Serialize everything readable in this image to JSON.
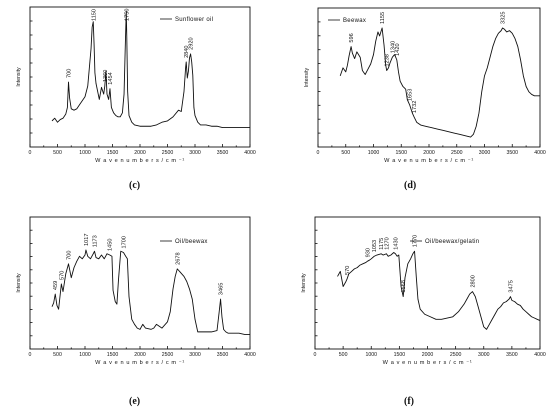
{
  "captions": [
    "(c)",
    "(d)",
    "(e)",
    "(f)"
  ],
  "chart_data": [
    {
      "type": "line",
      "legend": "Sunflower oil",
      "xlabel": "W a v e n u m b e r s / c m ⁻¹",
      "ylabel": "Intensity",
      "xlim": [
        0,
        4000
      ],
      "xticks": [
        0,
        500,
        1000,
        1500,
        2000,
        2500,
        3000,
        3500,
        4000
      ],
      "ylim": [
        0,
        100
      ],
      "x": [
        400,
        450,
        500,
        550,
        600,
        650,
        680,
        700,
        720,
        750,
        800,
        850,
        900,
        950,
        1000,
        1050,
        1080,
        1110,
        1130,
        1150,
        1165,
        1180,
        1200,
        1230,
        1260,
        1300,
        1340,
        1360,
        1380,
        1400,
        1430,
        1454,
        1480,
        1520,
        1560,
        1600,
        1640,
        1680,
        1710,
        1730,
        1750,
        1760,
        1775,
        1800,
        1850,
        1900,
        2000,
        2100,
        2200,
        2300,
        2400,
        2500,
        2600,
        2700,
        2750,
        2800,
        2830,
        2840,
        2860,
        2880,
        2900,
        2920,
        2940,
        2960,
        2980,
        3000,
        3050,
        3100,
        3200,
        3300,
        3400,
        3500,
        3600,
        3700,
        3800,
        3900,
        4000
      ],
      "y": [
        18,
        20,
        17,
        19,
        20,
        23,
        28,
        47,
        35,
        27,
        26,
        27,
        30,
        33,
        36,
        44,
        58,
        72,
        88,
        92,
        75,
        54,
        46,
        40,
        34,
        43,
        38,
        44,
        55,
        38,
        34,
        42,
        28,
        24,
        22,
        21,
        21,
        24,
        38,
        70,
        100,
        80,
        40,
        22,
        17,
        15,
        14,
        14,
        14,
        15,
        17,
        18,
        21,
        26,
        25,
        40,
        58,
        62,
        50,
        55,
        65,
        68,
        62,
        52,
        28,
        22,
        17,
        15,
        15,
        14,
        14,
        13,
        13,
        13,
        13,
        13,
        13
      ],
      "annotations": [
        {
          "x": 700,
          "label": "700"
        },
        {
          "x": 1150,
          "label": "1150"
        },
        {
          "x": 1360,
          "label": "1360"
        },
        {
          "x": 1454,
          "label": "1454"
        },
        {
          "x": 1750,
          "label": "1750"
        },
        {
          "x": 2840,
          "label": "2840"
        },
        {
          "x": 2920,
          "label": "2920"
        }
      ]
    },
    {
      "type": "line",
      "legend": "Beewax",
      "xlabel": "W a v e n u m b e r s / c m ⁻¹",
      "ylabel": "Intensity",
      "xlim": [
        0,
        4000
      ],
      "xticks": [
        0,
        500,
        1000,
        1500,
        2000,
        2500,
        3000,
        3500,
        4000
      ],
      "ylim": [
        0,
        100
      ],
      "x": [
        400,
        450,
        500,
        530,
        560,
        596,
        620,
        660,
        700,
        760,
        800,
        850,
        900,
        950,
        1000,
        1040,
        1080,
        1110,
        1155,
        1190,
        1220,
        1238,
        1270,
        1300,
        1340,
        1380,
        1420,
        1450,
        1480,
        1530,
        1580,
        1610,
        1653,
        1700,
        1732,
        1780,
        1850,
        1950,
        2050,
        2150,
        2250,
        2350,
        2450,
        2550,
        2650,
        2750,
        2800,
        2850,
        2900,
        2950,
        3000,
        3050,
        3100,
        3150,
        3200,
        3250,
        3300,
        3325,
        3360,
        3400,
        3450,
        3500,
        3550,
        3600,
        3650,
        3700,
        3750,
        3800,
        3850,
        3900,
        3950,
        4000
      ],
      "y": [
        52,
        58,
        55,
        60,
        67,
        74,
        69,
        65,
        70,
        66,
        56,
        53,
        57,
        61,
        68,
        78,
        85,
        82,
        88,
        75,
        60,
        56,
        58,
        62,
        66,
        68,
        64,
        55,
        48,
        44,
        42,
        34,
        30,
        24,
        21,
        17,
        15,
        14,
        13,
        12,
        11,
        10,
        9,
        8,
        7,
        6,
        8,
        14,
        24,
        40,
        52,
        58,
        66,
        74,
        80,
        84,
        86,
        88,
        87,
        85,
        86,
        84,
        80,
        74,
        64,
        52,
        44,
        40,
        38,
        37,
        37,
        37
      ],
      "annotations": [
        {
          "x": 596,
          "label": "596"
        },
        {
          "x": 1155,
          "label": "1155"
        },
        {
          "x": 1238,
          "label": "1238"
        },
        {
          "x": 1340,
          "label": "1340"
        },
        {
          "x": 1420,
          "label": "1420"
        },
        {
          "x": 1653,
          "label": "1653"
        },
        {
          "x": 1732,
          "label": "1732"
        },
        {
          "x": 3325,
          "label": "3325"
        }
      ]
    },
    {
      "type": "line",
      "legend": "Oil/beewax",
      "xlabel": "W a v e n u m b e r s / c m ⁻¹",
      "ylabel": "Intensity",
      "xlim": [
        0,
        4000
      ],
      "xticks": [
        0,
        500,
        1000,
        1500,
        2000,
        2500,
        3000,
        3500,
        4000
      ],
      "ylim": [
        0,
        100
      ],
      "x": [
        400,
        430,
        459,
        490,
        520,
        570,
        600,
        650,
        700,
        750,
        800,
        850,
        900,
        950,
        1000,
        1017,
        1050,
        1100,
        1150,
        1173,
        1200,
        1250,
        1300,
        1350,
        1400,
        1450,
        1490,
        1510,
        1550,
        1580,
        1610,
        1650,
        1700,
        1740,
        1770,
        1800,
        1850,
        1900,
        1950,
        2000,
        2050,
        2100,
        2200,
        2250,
        2300,
        2400,
        2500,
        2550,
        2600,
        2640,
        2678,
        2720,
        2760,
        2800,
        2850,
        2900,
        2950,
        3000,
        3050,
        3100,
        3200,
        3300,
        3400,
        3440,
        3465,
        3490,
        3520,
        3560,
        3600,
        3700,
        3800,
        3900,
        4000
      ],
      "y": [
        32,
        35,
        42,
        33,
        30,
        50,
        44,
        58,
        66,
        55,
        63,
        68,
        72,
        70,
        73,
        77,
        72,
        70,
        74,
        76,
        71,
        70,
        73,
        70,
        74,
        73,
        72,
        45,
        36,
        34,
        54,
        76,
        75,
        72,
        70,
        40,
        22,
        18,
        15,
        14,
        18,
        15,
        14,
        15,
        18,
        15,
        20,
        28,
        46,
        56,
        62,
        60,
        58,
        56,
        52,
        46,
        38,
        22,
        12,
        12,
        12,
        12,
        13,
        28,
        38,
        24,
        14,
        12,
        11,
        11,
        11,
        10,
        10
      ],
      "annotations": [
        {
          "x": 459,
          "label": "459"
        },
        {
          "x": 570,
          "label": "570"
        },
        {
          "x": 700,
          "label": "700"
        },
        {
          "x": 1017,
          "label": "1017"
        },
        {
          "x": 1173,
          "label": "1173"
        },
        {
          "x": 1450,
          "label": "1450"
        },
        {
          "x": 1700,
          "label": "1700"
        },
        {
          "x": 2678,
          "label": "2678"
        },
        {
          "x": 3465,
          "label": "3465"
        }
      ]
    },
    {
      "type": "line",
      "legend": "Oil/beewax/gelatin",
      "xlabel": "W a v e n u m b e r s / c m ⁻¹",
      "ylabel": "Intensity",
      "xlim": [
        0,
        4000
      ],
      "xticks": [
        0,
        500,
        1000,
        1500,
        2000,
        2500,
        3000,
        3500,
        4000
      ],
      "ylim": [
        0,
        100
      ],
      "x": [
        400,
        450,
        500,
        550,
        570,
        600,
        650,
        700,
        750,
        800,
        850,
        900,
        930,
        970,
        1000,
        1053,
        1100,
        1175,
        1210,
        1270,
        1300,
        1350,
        1400,
        1430,
        1460,
        1490,
        1530,
        1568,
        1600,
        1650,
        1700,
        1740,
        1770,
        1800,
        1830,
        1870,
        1950,
        2050,
        2150,
        2250,
        2350,
        2450,
        2550,
        2650,
        2700,
        2750,
        2800,
        2850,
        2900,
        2950,
        3000,
        3050,
        3100,
        3150,
        3200,
        3250,
        3300,
        3350,
        3400,
        3450,
        3475,
        3500,
        3550,
        3600,
        3650,
        3700,
        3750,
        3800,
        3850,
        3900,
        3950,
        4000
      ],
      "y": [
        56,
        60,
        48,
        52,
        54,
        58,
        60,
        62,
        63,
        65,
        66,
        67,
        68,
        69,
        70,
        72,
        73,
        74,
        73,
        74,
        72,
        73,
        75,
        74,
        72,
        73,
        48,
        40,
        55,
        66,
        70,
        74,
        76,
        56,
        38,
        30,
        26,
        24,
        22,
        22,
        23,
        24,
        28,
        34,
        38,
        42,
        44,
        40,
        32,
        24,
        16,
        14,
        18,
        22,
        26,
        30,
        32,
        35,
        36,
        38,
        40,
        37,
        36,
        34,
        33,
        30,
        28,
        26,
        24,
        23,
        22,
        21
      ],
      "annotations": [
        {
          "x": 570,
          "label": "570"
        },
        {
          "x": 930,
          "label": "930"
        },
        {
          "x": 1053,
          "label": "1053"
        },
        {
          "x": 1175,
          "label": "1175"
        },
        {
          "x": 1270,
          "label": "1270"
        },
        {
          "x": 1430,
          "label": "1430"
        },
        {
          "x": 1568,
          "label": "1568"
        },
        {
          "x": 1770,
          "label": "1770"
        },
        {
          "x": 2800,
          "label": "2800"
        },
        {
          "x": 3475,
          "label": "3475"
        }
      ]
    }
  ]
}
